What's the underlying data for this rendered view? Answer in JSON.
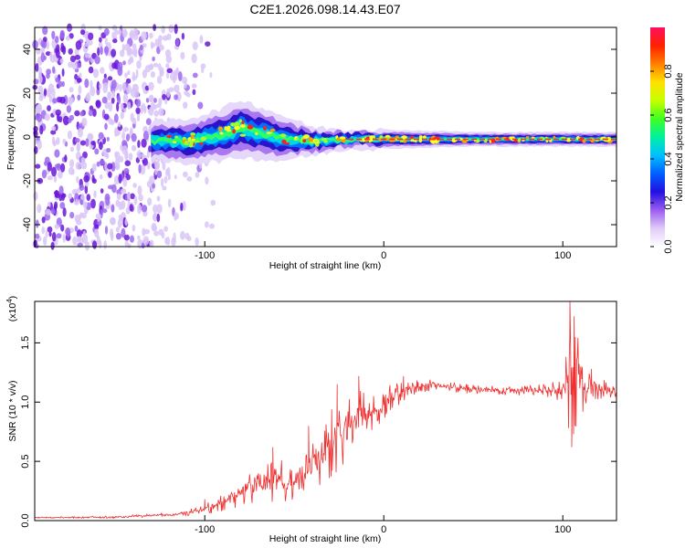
{
  "title": "C2E1.2026.098.14.43.E07",
  "chart_data": [
    {
      "type": "heatmap",
      "name": "spectrogram",
      "xlabel": "Height of straight line (km)",
      "ylabel": "Frequency (Hz)",
      "xlim": [
        -195,
        130
      ],
      "ylim": [
        -50,
        50
      ],
      "x_ticks": [
        -100,
        0,
        100
      ],
      "x_tick_labels": [
        "-100",
        "0",
        "100"
      ],
      "y_ticks": [
        -40,
        -20,
        0,
        20,
        40
      ],
      "y_tick_labels": [
        "-40",
        "-20",
        "0",
        "20",
        "40"
      ],
      "colorbar": {
        "label": "Normalized spectral amplitude",
        "range": [
          0.0,
          1.0
        ],
        "ticks": [
          0.0,
          0.2,
          0.4,
          0.6,
          0.8
        ],
        "tick_labels": [
          "0.0",
          "0.2",
          "0.4",
          "0.6",
          "0.8"
        ],
        "colors": [
          "#ffffff",
          "#c8a8f0",
          "#8a2be2",
          "#3020e0",
          "#0040ff",
          "#00c8ff",
          "#00ff80",
          "#a0ff00",
          "#ffff00",
          "#ff9000",
          "#ff0000",
          "#ff0080"
        ]
      },
      "description_points": {
        "noise_region_x": [
          -195,
          -105
        ],
        "band_start_x": -130,
        "band_center_freq": [
          [
            -130,
            -2
          ],
          [
            -110,
            -2
          ],
          [
            -90,
            1
          ],
          [
            -80,
            4
          ],
          [
            -70,
            2
          ],
          [
            -60,
            0
          ],
          [
            -50,
            -1
          ],
          [
            -40,
            -2
          ],
          [
            -20,
            -1
          ],
          [
            0,
            -1
          ],
          [
            20,
            -1
          ],
          [
            60,
            -1
          ],
          [
            100,
            -1
          ],
          [
            130,
            -1
          ]
        ],
        "band_halfwidth": [
          [
            -130,
            4
          ],
          [
            -100,
            5
          ],
          [
            -80,
            6
          ],
          [
            -60,
            5
          ],
          [
            -40,
            3
          ],
          [
            -20,
            2
          ],
          [
            0,
            2
          ],
          [
            50,
            1.5
          ],
          [
            130,
            1.5
          ]
        ]
      }
    },
    {
      "type": "line",
      "name": "snr",
      "xlabel": "Height of straight line (km)",
      "ylabel": "SNR (10 * v/v)",
      "y_multiplier_label": "(x10",
      "y_multiplier_exp": "4",
      "y_multiplier_close": ")",
      "xlim": [
        -195,
        130
      ],
      "ylim": [
        0,
        1.85
      ],
      "x_ticks": [
        -100,
        0,
        100
      ],
      "x_tick_labels": [
        "-100",
        "0",
        "100"
      ],
      "y_ticks": [
        0.0,
        0.5,
        1.0,
        1.5
      ],
      "y_tick_labels": [
        "0.0",
        "0.5",
        "1.0",
        "1.5"
      ],
      "series_color": "#ee3030",
      "envelope": [
        [
          -195,
          0.02,
          0.03
        ],
        [
          -150,
          0.02,
          0.04
        ],
        [
          -115,
          0.04,
          0.07
        ],
        [
          -100,
          0.05,
          0.14
        ],
        [
          -90,
          0.08,
          0.22
        ],
        [
          -80,
          0.12,
          0.4
        ],
        [
          -70,
          0.14,
          0.52
        ],
        [
          -60,
          0.15,
          0.5
        ],
        [
          -50,
          0.16,
          0.55
        ],
        [
          -40,
          0.25,
          0.72
        ],
        [
          -30,
          0.35,
          0.95
        ],
        [
          -20,
          0.5,
          1.1
        ],
        [
          -10,
          0.7,
          1.1
        ],
        [
          0,
          0.85,
          1.15
        ],
        [
          10,
          1.0,
          1.18
        ],
        [
          20,
          1.08,
          1.2
        ],
        [
          30,
          1.1,
          1.2
        ],
        [
          40,
          1.08,
          1.16
        ],
        [
          60,
          1.06,
          1.14
        ],
        [
          90,
          1.05,
          1.15
        ],
        [
          100,
          1.0,
          1.2
        ],
        [
          105,
          0.65,
          1.85
        ],
        [
          110,
          0.9,
          1.5
        ],
        [
          115,
          0.95,
          1.3
        ],
        [
          120,
          1.02,
          1.22
        ],
        [
          130,
          1.05,
          1.12
        ]
      ],
      "spikes": [
        [
          -100,
          0.18
        ],
        [
          -62,
          0.62
        ],
        [
          -42,
          0.8
        ],
        [
          -26,
          1.15
        ],
        [
          -14,
          1.22
        ],
        [
          11,
          1.22
        ],
        [
          104,
          1.85
        ],
        [
          105,
          0.62
        ],
        [
          107,
          1.55
        ],
        [
          110,
          1.3
        ],
        [
          116,
          1.28
        ]
      ]
    }
  ]
}
